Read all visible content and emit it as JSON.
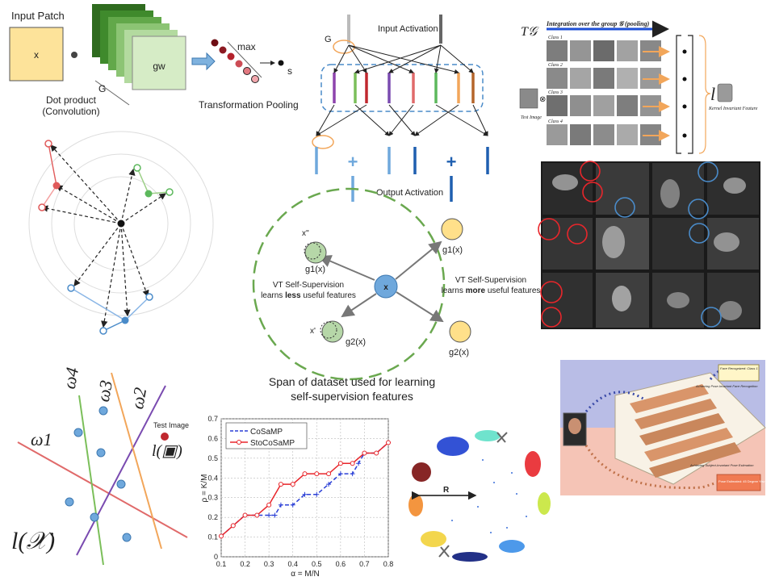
{
  "panel_pooling": {
    "input_patch_label": "Input Patch",
    "x_label": "x",
    "g_label": "G",
    "gw_label": "gw",
    "dot_product_label": "Dot product",
    "convolution_label": "(Convolution)",
    "max_label": "max",
    "s_label": "s",
    "transformation_pooling_label": "Transformation Pooling"
  },
  "panel_network": {
    "g_label": "G",
    "input_activation_label": "Input Activation",
    "output_activation_label": "Output Activation",
    "plus_symbol": "+"
  },
  "panel_invariant": {
    "t_g_label": "T𝒢",
    "integration_label": "Integration over the group 𝒢 (pooling)",
    "class_labels": [
      "Class 1",
      "Class 2",
      "Class 3",
      "Class 4"
    ],
    "test_image_label": "Test Image",
    "otimes_symbol": "⊗",
    "feature_label": "Kernel Invariant Feature",
    "l_symbol": "l"
  },
  "panel_selfsup": {
    "x_label": "x",
    "x_double_prime_label": "x''",
    "x_prime_label": "x'",
    "g1_label": "g1(x)",
    "g2_label": "g2(x)",
    "g1_right_label": "g1(x)",
    "g2_right_label": "g2(x)",
    "vt_left_line1": "VT Self-Supervision",
    "vt_left_line2_pre": "learns ",
    "vt_left_line2_bold": "less",
    "vt_left_line2_post": " useful features",
    "vt_right_line1": "VT Self-Supervision",
    "vt_right_line2_pre": "learns ",
    "vt_right_line2_bold": "more",
    "vt_right_line2_post": " useful features",
    "span_line1": "Span of dataset used for learning",
    "span_line2": "self-supervision features"
  },
  "panel_hyperplanes": {
    "omega1": "ω1",
    "omega2": "ω2",
    "omega3": "ω3",
    "omega4": "ω4",
    "test_image_label": "Test Image",
    "l_test": "l(▣)",
    "l_x": "l(𝒳)"
  },
  "panel_cluster_ring": {
    "r_label": "R"
  },
  "panel_pose": {
    "face_recognized": "Face Recognized: Class 1",
    "achieving_pose": "Achieving Pose-Invariant Face Recognition",
    "achieving_subject": "Achieving Subject-Invariant Pose Estimation",
    "pose_estimated": "Pose Estimated: 45 Degree Yaw"
  },
  "colors": {
    "patch_yellow": "#fde39a",
    "green_dark": "#2f6b1f",
    "green_light": "#cfe8b8",
    "pool_red": "#b3212b",
    "arrow_blue": "#4a8bc9",
    "dash_green": "#6aa84f",
    "node_green": "#b6d7a8",
    "node_yellow": "#ffe08a",
    "node_blue": "#6fa8dc",
    "stocosamp_red": "#e8262b",
    "cosamp_blue": "#2a3fd6"
  },
  "chart_data": {
    "type": "line",
    "title": "",
    "xlabel": "α = M/N",
    "ylabel": "ρ = K/M",
    "xlim": [
      0.1,
      0.8
    ],
    "ylim": [
      0,
      0.7
    ],
    "xticks": [
      "0.1",
      "0.2",
      "0.3",
      "0.4",
      "0.5",
      "0.6",
      "0.7",
      "0.8"
    ],
    "yticks": [
      "0",
      "0.1",
      "0.2",
      "0.3",
      "0.4",
      "0.5",
      "0.6",
      "0.7"
    ],
    "grid": true,
    "legend_position": "top-left",
    "series": [
      {
        "name": "CoSaMP",
        "color": "#2a3fd6",
        "style": "dashed",
        "marker": "plus",
        "points": [
          [
            0.1,
            0.105
          ],
          [
            0.15,
            0.158
          ],
          [
            0.2,
            0.211
          ],
          [
            0.25,
            0.211
          ],
          [
            0.3,
            0.211
          ],
          [
            0.325,
            0.211
          ],
          [
            0.35,
            0.263
          ],
          [
            0.4,
            0.263
          ],
          [
            0.45,
            0.316
          ],
          [
            0.5,
            0.316
          ],
          [
            0.55,
            0.368
          ],
          [
            0.6,
            0.421
          ],
          [
            0.65,
            0.421
          ],
          [
            0.675,
            0.474
          ],
          [
            0.7,
            0.526
          ],
          [
            0.75,
            0.526
          ],
          [
            0.8,
            0.579
          ]
        ]
      },
      {
        "name": "StoCoSaMP",
        "color": "#e8262b",
        "style": "solid",
        "marker": "circle",
        "points": [
          [
            0.1,
            0.105
          ],
          [
            0.15,
            0.158
          ],
          [
            0.2,
            0.211
          ],
          [
            0.25,
            0.211
          ],
          [
            0.3,
            0.263
          ],
          [
            0.35,
            0.368
          ],
          [
            0.4,
            0.368
          ],
          [
            0.45,
            0.421
          ],
          [
            0.5,
            0.421
          ],
          [
            0.55,
            0.421
          ],
          [
            0.6,
            0.474
          ],
          [
            0.65,
            0.474
          ],
          [
            0.7,
            0.526
          ],
          [
            0.75,
            0.526
          ],
          [
            0.8,
            0.579
          ]
        ]
      }
    ]
  }
}
